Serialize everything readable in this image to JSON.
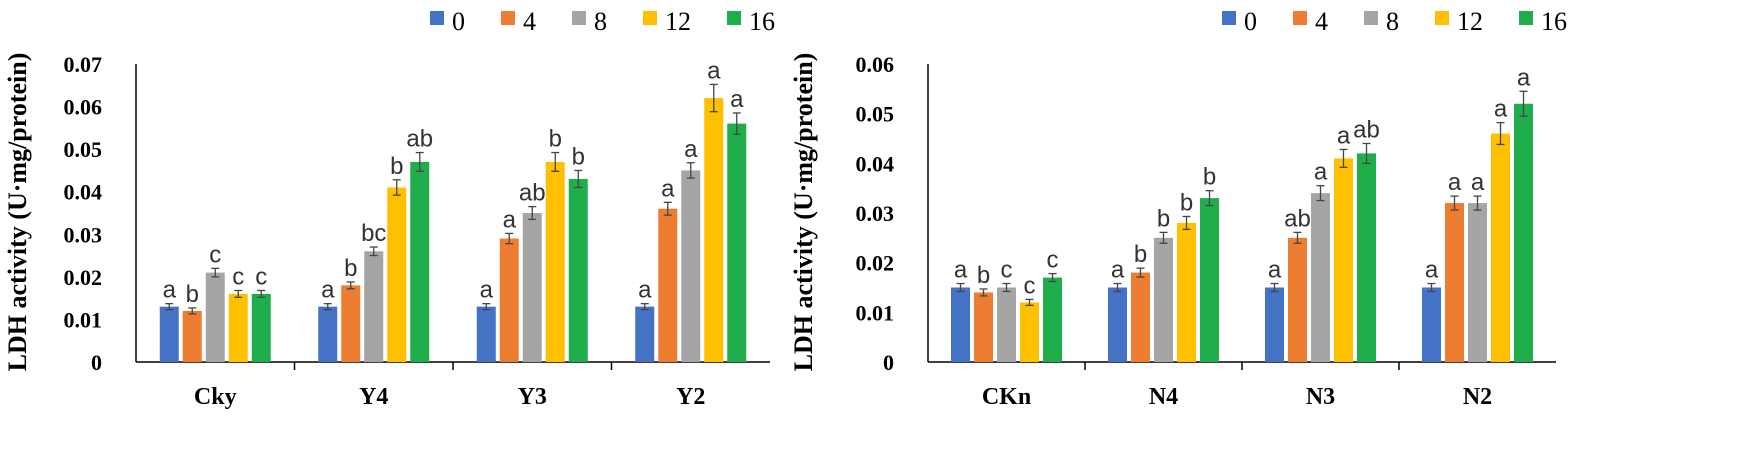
{
  "colors": {
    "series": [
      "#4472c4",
      "#ed7d31",
      "#a5a5a5",
      "#ffc000",
      "#1fae4b"
    ],
    "axis": "#000000",
    "error_bar": "#444444"
  },
  "chart_data": [
    {
      "type": "bar",
      "ylabel": "LDH activity (U·mg/protein)",
      "ylim": [
        0,
        0.07
      ],
      "yticks": [
        0,
        0.01,
        0.02,
        0.03,
        0.04,
        0.05,
        0.06,
        0.07
      ],
      "ytick_labels": [
        "0",
        "0.01",
        "0.02",
        "0.03",
        "0.04",
        "0.05",
        "0.06",
        "0.07"
      ],
      "legend_position": "top-right",
      "categories": [
        "Cky",
        "Y4",
        "Y3",
        "Y2"
      ],
      "series": [
        {
          "name": "0",
          "values": [
            0.013,
            0.013,
            0.013,
            0.013
          ],
          "errors": [
            0.0007,
            0.0007,
            0.0007,
            0.0007
          ],
          "labels": [
            "a",
            "a",
            "a",
            "a"
          ]
        },
        {
          "name": "4",
          "values": [
            0.012,
            0.018,
            0.029,
            0.036
          ],
          "errors": [
            0.0007,
            0.0008,
            0.0012,
            0.0015
          ],
          "labels": [
            "b",
            "b",
            "a",
            "a"
          ]
        },
        {
          "name": "8",
          "values": [
            0.021,
            0.026,
            0.035,
            0.045
          ],
          "errors": [
            0.001,
            0.001,
            0.0015,
            0.0018
          ],
          "labels": [
            "c",
            "bc",
            "ab",
            "a"
          ]
        },
        {
          "name": "12",
          "values": [
            0.016,
            0.041,
            0.047,
            0.062
          ],
          "errors": [
            0.0008,
            0.0018,
            0.0022,
            0.0032
          ],
          "labels": [
            "c",
            "b",
            "b",
            "a"
          ]
        },
        {
          "name": "16",
          "values": [
            0.016,
            0.047,
            0.043,
            0.056
          ],
          "errors": [
            0.0008,
            0.0022,
            0.002,
            0.0025
          ],
          "labels": [
            "c",
            "ab",
            "b",
            "a"
          ]
        }
      ]
    },
    {
      "type": "bar",
      "ylabel": "LDH activity (U·mg/protein)",
      "ylim": [
        0,
        0.06
      ],
      "yticks": [
        0,
        0.01,
        0.02,
        0.03,
        0.04,
        0.05,
        0.06
      ],
      "ytick_labels": [
        "0",
        "0.01",
        "0.02",
        "0.03",
        "0.04",
        "0.05",
        "0.06"
      ],
      "legend_position": "top-right",
      "categories": [
        "CKn",
        "N4",
        "N3",
        "N2"
      ],
      "series": [
        {
          "name": "0",
          "values": [
            0.015,
            0.015,
            0.015,
            0.015
          ],
          "errors": [
            0.0008,
            0.0008,
            0.0008,
            0.0008
          ],
          "labels": [
            "a",
            "a",
            "a",
            "a"
          ]
        },
        {
          "name": "4",
          "values": [
            0.014,
            0.018,
            0.025,
            0.032
          ],
          "errors": [
            0.0007,
            0.0009,
            0.0011,
            0.0014
          ],
          "labels": [
            "b",
            "b",
            "ab",
            "a"
          ]
        },
        {
          "name": "8",
          "values": [
            0.015,
            0.025,
            0.034,
            0.032
          ],
          "errors": [
            0.0008,
            0.0011,
            0.0015,
            0.0014
          ],
          "labels": [
            "c",
            "b",
            "a",
            "a"
          ]
        },
        {
          "name": "12",
          "values": [
            0.012,
            0.028,
            0.041,
            0.046
          ],
          "errors": [
            0.0006,
            0.0013,
            0.0018,
            0.0022
          ],
          "labels": [
            "c",
            "b",
            "a",
            "a"
          ]
        },
        {
          "name": "16",
          "values": [
            0.017,
            0.033,
            0.042,
            0.052
          ],
          "errors": [
            0.0008,
            0.0015,
            0.002,
            0.0025
          ],
          "labels": [
            "c",
            "b",
            "ab",
            "a"
          ]
        }
      ]
    }
  ]
}
